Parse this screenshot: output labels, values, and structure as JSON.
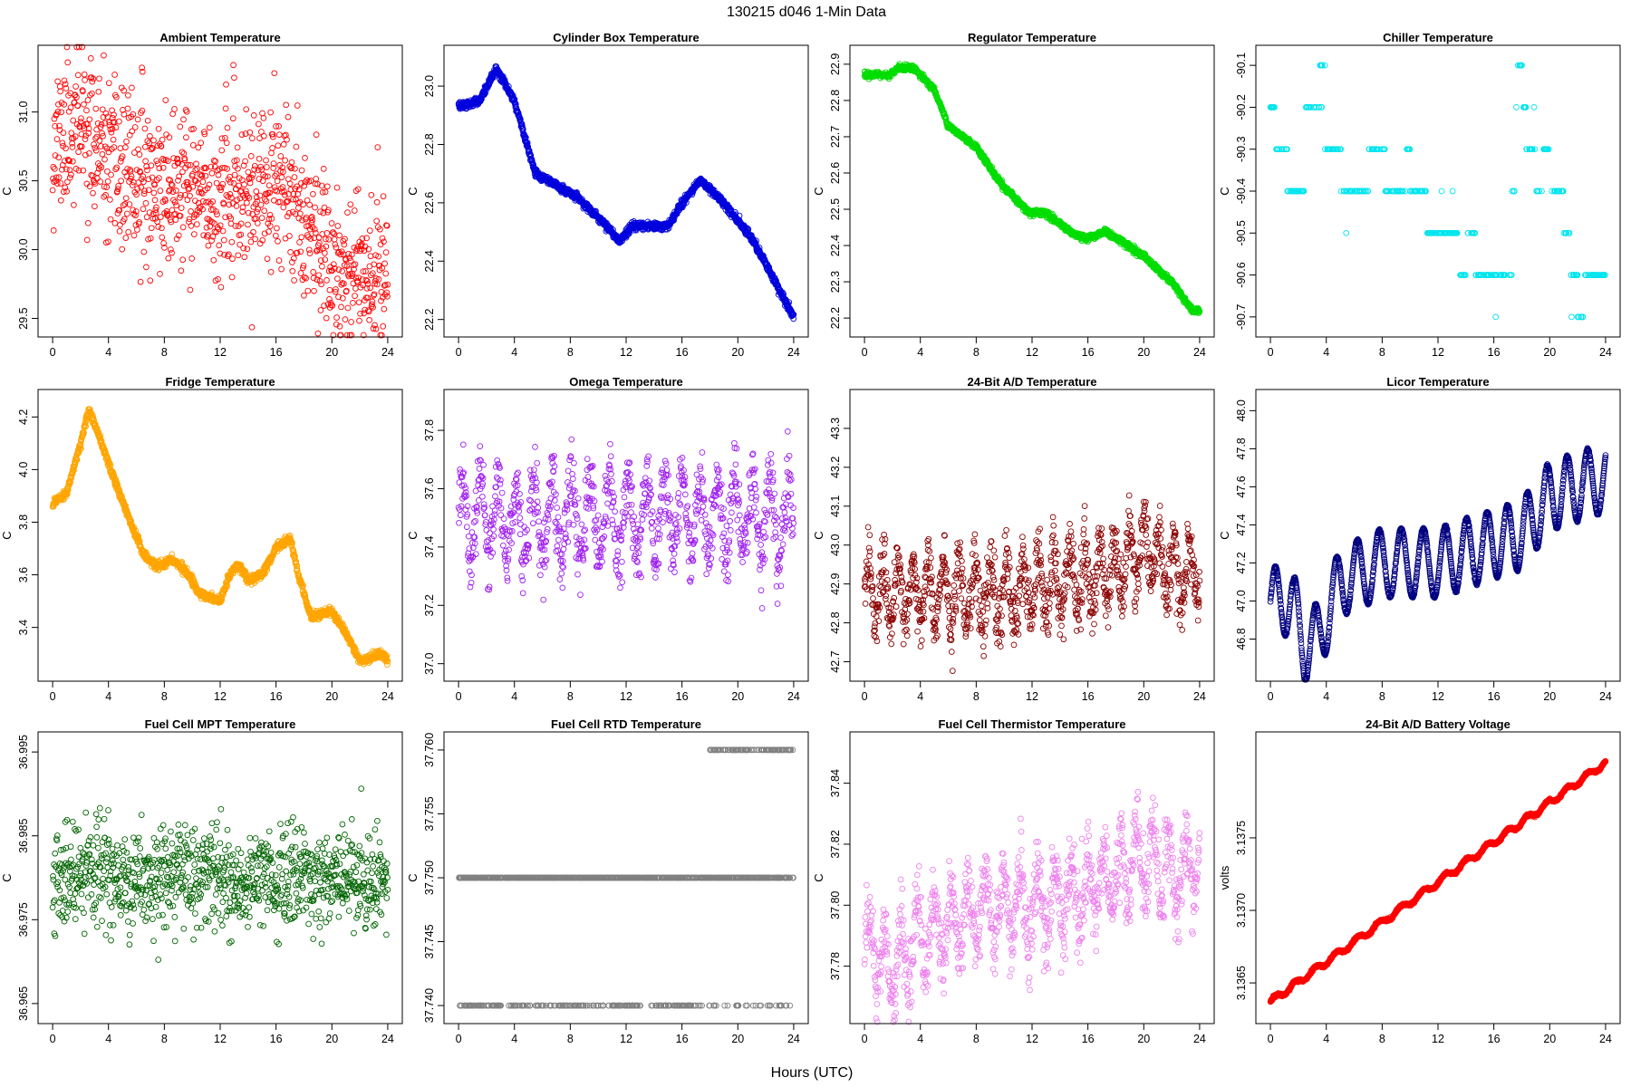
{
  "figure": {
    "title": "130215   d046   1-Min Data",
    "xlabel": "Hours (UTC)"
  },
  "chart_data": [
    {
      "type": "scatter",
      "title": "Ambient Temperature",
      "ylabel": "C",
      "color": "#ff0000",
      "xlim": [
        0,
        24
      ],
      "ylim": [
        29.45,
        31.4
      ],
      "xticks": [
        0,
        4,
        8,
        12,
        16,
        20,
        24
      ],
      "xtick_labels": [
        "0",
        "4",
        "8",
        "12",
        "16",
        "20",
        "24"
      ],
      "yticks": [
        29.5,
        30.0,
        30.5,
        31.0
      ],
      "ytick_labels": [
        "29.5",
        "30.0",
        "30.5",
        "31.0"
      ],
      "n_points": 1000,
      "trend": [
        [
          0,
          30.75
        ],
        [
          2,
          30.95
        ],
        [
          4,
          30.6
        ],
        [
          8,
          30.45
        ],
        [
          12,
          30.35
        ],
        [
          16,
          30.45
        ],
        [
          18,
          30.3
        ],
        [
          20,
          29.9
        ],
        [
          24,
          29.85
        ]
      ],
      "noise": 0.28,
      "seed": 11
    },
    {
      "type": "scatter",
      "title": "Cylinder Box Temperature",
      "ylabel": "C",
      "color": "#0000dd",
      "xlim": [
        0,
        24
      ],
      "ylim": [
        22.18,
        23.1
      ],
      "xticks": [
        0,
        4,
        8,
        12,
        16,
        20,
        24
      ],
      "xtick_labels": [
        "0",
        "4",
        "8",
        "12",
        "16",
        "20",
        "24"
      ],
      "yticks": [
        22.2,
        22.4,
        22.6,
        22.8,
        23.0
      ],
      "ytick_labels": [
        "22.2",
        "22.4",
        "22.6",
        "22.8",
        "23.0"
      ],
      "n_points": 1440,
      "trend": [
        [
          0,
          22.93
        ],
        [
          1.5,
          22.95
        ],
        [
          2.7,
          23.06
        ],
        [
          4,
          22.95
        ],
        [
          5.5,
          22.7
        ],
        [
          7,
          22.66
        ],
        [
          8.5,
          22.62
        ],
        [
          10,
          22.55
        ],
        [
          11.5,
          22.47
        ],
        [
          12.5,
          22.52
        ],
        [
          15,
          22.52
        ],
        [
          16,
          22.6
        ],
        [
          17.3,
          22.68
        ],
        [
          19,
          22.6
        ],
        [
          21,
          22.48
        ],
        [
          23,
          22.3
        ],
        [
          24,
          22.21
        ]
      ],
      "noise": 0.006,
      "seed": 12
    },
    {
      "type": "scatter",
      "title": "Regulator Temperature",
      "ylabel": "C",
      "color": "#00dd00",
      "xlim": [
        0,
        24
      ],
      "ylim": [
        22.18,
        22.92
      ],
      "xticks": [
        0,
        4,
        8,
        12,
        16,
        20,
        24
      ],
      "xtick_labels": [
        "0",
        "4",
        "8",
        "12",
        "16",
        "20",
        "24"
      ],
      "yticks": [
        22.2,
        22.3,
        22.4,
        22.5,
        22.6,
        22.7,
        22.8,
        22.9
      ],
      "ytick_labels": [
        "22.2",
        "22.3",
        "22.4",
        "22.5",
        "22.6",
        "22.7",
        "22.8",
        "22.9"
      ],
      "n_points": 1440,
      "trend": [
        [
          0,
          22.87
        ],
        [
          1.8,
          22.87
        ],
        [
          2.5,
          22.89
        ],
        [
          3.5,
          22.89
        ],
        [
          5,
          22.83
        ],
        [
          6,
          22.73
        ],
        [
          8,
          22.67
        ],
        [
          10,
          22.56
        ],
        [
          11.8,
          22.49
        ],
        [
          13,
          22.49
        ],
        [
          15,
          22.43
        ],
        [
          16,
          22.42
        ],
        [
          17.2,
          22.44
        ],
        [
          18.5,
          22.41
        ],
        [
          20,
          22.37
        ],
        [
          22,
          22.3
        ],
        [
          23.5,
          22.22
        ],
        [
          24,
          22.22
        ]
      ],
      "noise": 0.004,
      "seed": 13
    },
    {
      "type": "scatter",
      "title": "Chiller Temperature",
      "ylabel": "C",
      "color": "#00e5ee",
      "xlim": [
        0,
        24
      ],
      "ylim": [
        -90.72,
        -90.08
      ],
      "xticks": [
        0,
        4,
        8,
        12,
        16,
        20,
        24
      ],
      "xtick_labels": [
        "0",
        "4",
        "8",
        "12",
        "16",
        "20",
        "24"
      ],
      "yticks": [
        -90.7,
        -90.6,
        -90.5,
        -90.4,
        -90.3,
        -90.2,
        -90.1
      ],
      "ytick_labels": [
        "-90.7",
        "-90.6",
        "-90.5",
        "-90.4",
        "-90.3",
        "-90.2",
        "-90.1"
      ],
      "levels": [
        [
          0,
          -90.2
        ],
        [
          0.3,
          -90.3
        ],
        [
          1.2,
          -90.4
        ],
        [
          2.4,
          -90.2
        ],
        [
          3.5,
          -90.1
        ],
        [
          3.9,
          -90.3
        ],
        [
          5,
          -90.4
        ],
        [
          7,
          -90.3
        ],
        [
          8.2,
          -90.4
        ],
        [
          9.7,
          -90.3
        ],
        [
          10,
          -90.4
        ],
        [
          11.2,
          -90.5
        ],
        [
          13.5,
          -90.6
        ],
        [
          14,
          -90.5
        ],
        [
          14.7,
          -90.6
        ],
        [
          17.3,
          -90.4
        ],
        [
          17.5,
          -90.2
        ],
        [
          17.7,
          -90.1
        ],
        [
          18,
          -90.2
        ],
        [
          18.3,
          -90.3
        ],
        [
          19,
          -90.4
        ],
        [
          19.5,
          -90.3
        ],
        [
          20,
          -90.4
        ],
        [
          21,
          -90.5
        ],
        [
          21.5,
          -90.6
        ],
        [
          22,
          -90.7
        ],
        [
          22.5,
          -90.6
        ]
      ],
      "n_points": 480,
      "seed": 14
    },
    {
      "type": "scatter",
      "title": "Fridge Temperature",
      "ylabel": "C",
      "color": "#ffa500",
      "xlim": [
        0,
        24
      ],
      "ylim": [
        3.24,
        4.26
      ],
      "xticks": [
        0,
        4,
        8,
        12,
        16,
        20,
        24
      ],
      "xtick_labels": [
        "0",
        "4",
        "8",
        "12",
        "16",
        "20",
        "24"
      ],
      "yticks": [
        3.4,
        3.6,
        3.8,
        4.0,
        4.2
      ],
      "ytick_labels": [
        "3.4",
        "3.6",
        "3.8",
        "4.0",
        "4.2"
      ],
      "n_points": 1440,
      "trend": [
        [
          0,
          3.87
        ],
        [
          1,
          3.91
        ],
        [
          2,
          4.1
        ],
        [
          2.6,
          4.23
        ],
        [
          3.5,
          4.1
        ],
        [
          5,
          3.88
        ],
        [
          6.5,
          3.68
        ],
        [
          7.5,
          3.63
        ],
        [
          8.5,
          3.66
        ],
        [
          9.5,
          3.62
        ],
        [
          10.5,
          3.53
        ],
        [
          12,
          3.5
        ],
        [
          12.7,
          3.6
        ],
        [
          13.3,
          3.64
        ],
        [
          14,
          3.58
        ],
        [
          15,
          3.6
        ],
        [
          16,
          3.7
        ],
        [
          17,
          3.74
        ],
        [
          17.6,
          3.6
        ],
        [
          18.5,
          3.44
        ],
        [
          20,
          3.46
        ],
        [
          21,
          3.38
        ],
        [
          22,
          3.27
        ],
        [
          23.5,
          3.3
        ],
        [
          24,
          3.28
        ]
      ],
      "noise": 0.008,
      "seed": 15
    },
    {
      "type": "scatter",
      "title": "Omega Temperature",
      "ylabel": "C",
      "color": "#a020f0",
      "xlim": [
        0,
        24
      ],
      "ylim": [
        36.98,
        37.9
      ],
      "xticks": [
        0,
        4,
        8,
        12,
        16,
        20,
        24
      ],
      "xtick_labels": [
        "0",
        "4",
        "8",
        "12",
        "16",
        "20",
        "24"
      ],
      "yticks": [
        37.0,
        37.2,
        37.4,
        37.6,
        37.8
      ],
      "ytick_labels": [
        "37.0",
        "37.2",
        "37.4",
        "37.6",
        "37.8"
      ],
      "n_points": 1000,
      "trend": [
        [
          0,
          37.5
        ],
        [
          24,
          37.5
        ]
      ],
      "osc_amp": 0.14,
      "osc_period": 1.3,
      "noise": 0.06,
      "seed": 16
    },
    {
      "type": "scatter",
      "title": "24-Bit A/D Temperature",
      "ylabel": "C",
      "color": "#8b0000",
      "xlim": [
        0,
        24
      ],
      "ylim": [
        42.68,
        43.37
      ],
      "xticks": [
        0,
        4,
        8,
        12,
        16,
        20,
        24
      ],
      "xtick_labels": [
        "0",
        "4",
        "8",
        "12",
        "16",
        "20",
        "24"
      ],
      "yticks": [
        42.7,
        42.8,
        42.9,
        43.0,
        43.1,
        43.2,
        43.3
      ],
      "ytick_labels": [
        "42.7",
        "42.8",
        "42.9",
        "43.0",
        "43.1",
        "43.2",
        "43.3"
      ],
      "n_points": 1100,
      "trend": [
        [
          0,
          42.88
        ],
        [
          8,
          42.87
        ],
        [
          14,
          42.9
        ],
        [
          18,
          42.93
        ],
        [
          20,
          43.0
        ],
        [
          22,
          42.92
        ],
        [
          24,
          42.95
        ]
      ],
      "osc_amp": 0.08,
      "osc_period": 1.1,
      "noise": 0.04,
      "seed": 17
    },
    {
      "type": "scatter",
      "title": "Licor Temperature",
      "ylabel": "C",
      "color": "#000080",
      "xlim": [
        0,
        24
      ],
      "ylim": [
        46.64,
        48.05
      ],
      "xticks": [
        0,
        4,
        8,
        12,
        16,
        20,
        24
      ],
      "xtick_labels": [
        "0",
        "4",
        "8",
        "12",
        "16",
        "20",
        "24"
      ],
      "yticks": [
        46.8,
        47.0,
        47.2,
        47.4,
        47.6,
        47.8,
        48.0
      ],
      "ytick_labels": [
        "46.8",
        "47.0",
        "47.2",
        "47.4",
        "47.6",
        "47.8",
        "48.0"
      ],
      "n_points": 1440,
      "trend": [
        [
          0,
          47.0
        ],
        [
          1.5,
          47.0
        ],
        [
          2.5,
          46.75
        ],
        [
          3.5,
          46.82
        ],
        [
          5,
          47.1
        ],
        [
          8,
          47.2
        ],
        [
          12,
          47.2
        ],
        [
          16,
          47.3
        ],
        [
          18,
          47.35
        ],
        [
          20,
          47.55
        ],
        [
          22,
          47.6
        ],
        [
          24,
          47.65
        ]
      ],
      "osc_amp": 0.18,
      "osc_period": 1.5,
      "noise": 0.003,
      "seed": 18
    },
    {
      "type": "scatter",
      "title": "Fuel Cell MPT Temperature",
      "ylabel": "C",
      "color": "#006400",
      "xlim": [
        0,
        24
      ],
      "ylim": [
        36.964,
        36.996
      ],
      "xticks": [
        0,
        4,
        8,
        12,
        16,
        20,
        24
      ],
      "xtick_labels": [
        "0",
        "4",
        "8",
        "12",
        "16",
        "20",
        "24"
      ],
      "yticks": [
        36.965,
        36.975,
        36.985,
        36.995
      ],
      "ytick_labels": [
        "36.965",
        "36.975",
        "36.985",
        "36.995"
      ],
      "n_points": 1000,
      "trend": [
        [
          0,
          36.98
        ],
        [
          24,
          36.98
        ]
      ],
      "noise": 0.0032,
      "seed": 19
    },
    {
      "type": "scatter",
      "title": "Fuel Cell RTD Temperature",
      "ylabel": "C",
      "color": "#808080",
      "xlim": [
        0,
        24
      ],
      "ylim": [
        37.7395,
        37.7605
      ],
      "xticks": [
        0,
        4,
        8,
        12,
        16,
        20,
        24
      ],
      "xtick_labels": [
        "0",
        "4",
        "8",
        "12",
        "16",
        "20",
        "24"
      ],
      "yticks": [
        37.74,
        37.745,
        37.75,
        37.755,
        37.76
      ],
      "ytick_labels": [
        "37.740",
        "37.745",
        "37.750",
        "37.755",
        "37.760"
      ],
      "quantized": [
        37.74,
        37.75,
        37.76
      ],
      "n_points": 1200,
      "seed": 20
    },
    {
      "type": "scatter",
      "title": "Fuel Cell Thermistor Temperature",
      "ylabel": "C",
      "color": "#ee82ee",
      "xlim": [
        0,
        24
      ],
      "ylim": [
        37.765,
        37.853
      ],
      "xticks": [
        0,
        4,
        8,
        12,
        16,
        20,
        24
      ],
      "xtick_labels": [
        "0",
        "4",
        "8",
        "12",
        "16",
        "20",
        "24"
      ],
      "yticks": [
        37.78,
        37.8,
        37.82,
        37.84
      ],
      "ytick_labels": [
        "37.78",
        "37.80",
        "37.82",
        "37.84"
      ],
      "n_points": 1100,
      "trend": [
        [
          0,
          37.788
        ],
        [
          2,
          37.778
        ],
        [
          4,
          37.79
        ],
        [
          8,
          37.798
        ],
        [
          12,
          37.8
        ],
        [
          16,
          37.805
        ],
        [
          18,
          37.81
        ],
        [
          20,
          37.815
        ],
        [
          22,
          37.81
        ],
        [
          24,
          37.815
        ]
      ],
      "osc_amp": 0.011,
      "osc_period": 1.2,
      "noise": 0.006,
      "seed": 21
    },
    {
      "type": "scatter",
      "title": "24-Bit A/D Battery Voltage",
      "ylabel": "volts",
      "color": "#ff0000",
      "xlim": [
        0,
        24
      ],
      "ylim": [
        3.1363,
        3.13815
      ],
      "xticks": [
        0,
        4,
        8,
        12,
        16,
        20,
        24
      ],
      "xtick_labels": [
        "0",
        "4",
        "8",
        "12",
        "16",
        "20",
        "24"
      ],
      "yticks": [
        3.1365,
        3.137,
        3.1375
      ],
      "ytick_labels": [
        "3.1365",
        "3.1370",
        "3.1375"
      ],
      "n_points": 1440,
      "trend": [
        [
          0,
          3.13637
        ],
        [
          24,
          3.13802
        ]
      ],
      "osc_amp": 2e-05,
      "osc_period": 1.5,
      "noise": 4e-06,
      "seed": 22
    }
  ]
}
